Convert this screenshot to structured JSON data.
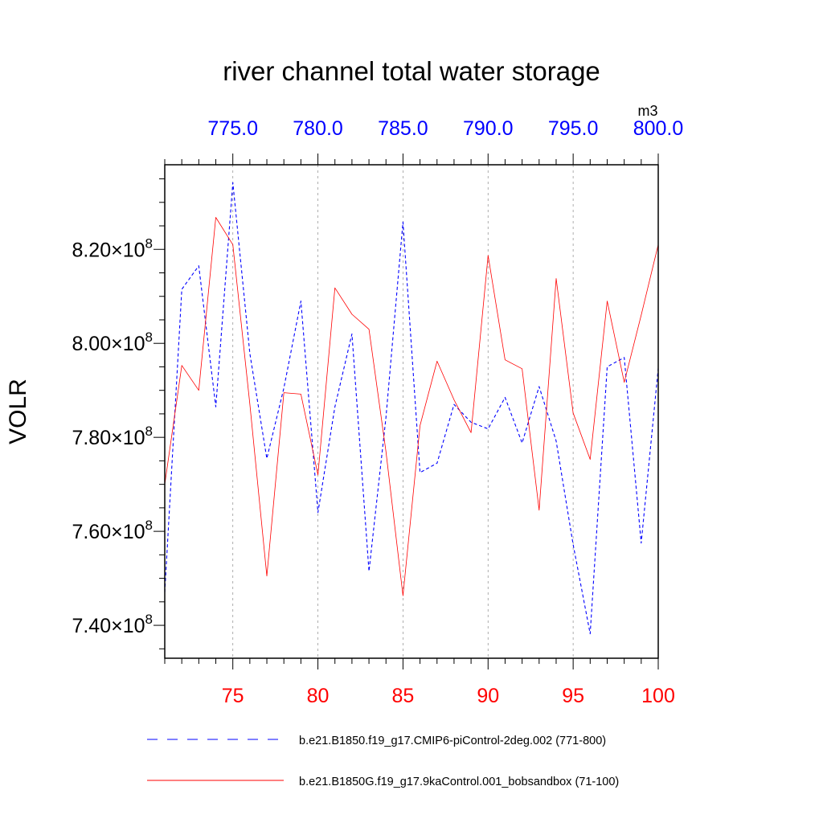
{
  "chart_data": {
    "type": "line",
    "title": "river channel total water storage",
    "ylabel": "VOLR",
    "units": "m3",
    "ylim": [
      733000000,
      838000000
    ],
    "y_ticks": [
      {
        "value": 740000000,
        "mantissa": "7.40",
        "exponent": "8"
      },
      {
        "value": 760000000,
        "mantissa": "7.60",
        "exponent": "8"
      },
      {
        "value": 780000000,
        "mantissa": "7.80",
        "exponent": "8"
      },
      {
        "value": 800000000,
        "mantissa": "8.00",
        "exponent": "8"
      },
      {
        "value": 820000000,
        "mantissa": "8.20",
        "exponent": "8"
      }
    ],
    "bottom_axis": {
      "range": [
        71,
        100
      ],
      "color": "#ff0000",
      "ticks": [
        75,
        80,
        85,
        90,
        95,
        100
      ],
      "tick_labels": [
        "75",
        "80",
        "85",
        "90",
        "95",
        "100"
      ]
    },
    "top_axis": {
      "range": [
        771,
        800
      ],
      "color": "#0000ff",
      "ticks": [
        775,
        780,
        785,
        790,
        795,
        800
      ],
      "tick_labels": [
        "775.0",
        "780.0",
        "785.0",
        "790.0",
        "795.0",
        "800.0"
      ]
    },
    "series": [
      {
        "name": "b.e21.B1850.f19_g17.CMIP6-piControl-2deg.002 (771-800)",
        "color": "#0000ff",
        "dash": "dashed",
        "axis": "top",
        "x": [
          771,
          772,
          773,
          774,
          775,
          776,
          777,
          778,
          779,
          780,
          781,
          782,
          783,
          784,
          785,
          786,
          787,
          788,
          789,
          790,
          791,
          792,
          793,
          794,
          795,
          796,
          797,
          798,
          799,
          800
        ],
        "values": [
          747000000,
          811500000,
          816500000,
          786500000,
          834200000,
          797800000,
          775500000,
          790500000,
          809000000,
          764000000,
          786500000,
          802000000,
          751500000,
          784200000,
          825800000,
          772500000,
          774500000,
          787000000,
          783200000,
          781800000,
          788500000,
          778800000,
          790800000,
          779200000,
          757200000,
          738200000,
          795000000,
          797000000,
          757500000,
          794700000
        ]
      },
      {
        "name": "b.e21.B1850G.f19_g17.9kaControl.001_bobsandbox (71-100)",
        "color": "#ff0000",
        "dash": "solid",
        "axis": "bottom",
        "x": [
          71,
          72,
          73,
          74,
          75,
          76,
          77,
          78,
          79,
          80,
          81,
          82,
          83,
          84,
          85,
          86,
          87,
          88,
          89,
          90,
          91,
          92,
          93,
          94,
          95,
          96,
          97,
          98,
          99,
          100
        ],
        "values": [
          770000000,
          795300000,
          790000000,
          826800000,
          821000000,
          787000000,
          750500000,
          789500000,
          789200000,
          772000000,
          811800000,
          806200000,
          803000000,
          777000000,
          746300000,
          782500000,
          796200000,
          788000000,
          781000000,
          818700000,
          796500000,
          794600000,
          764500000,
          813800000,
          785200000,
          775300000,
          809000000,
          791700000,
          806000000,
          821000000
        ]
      }
    ]
  }
}
